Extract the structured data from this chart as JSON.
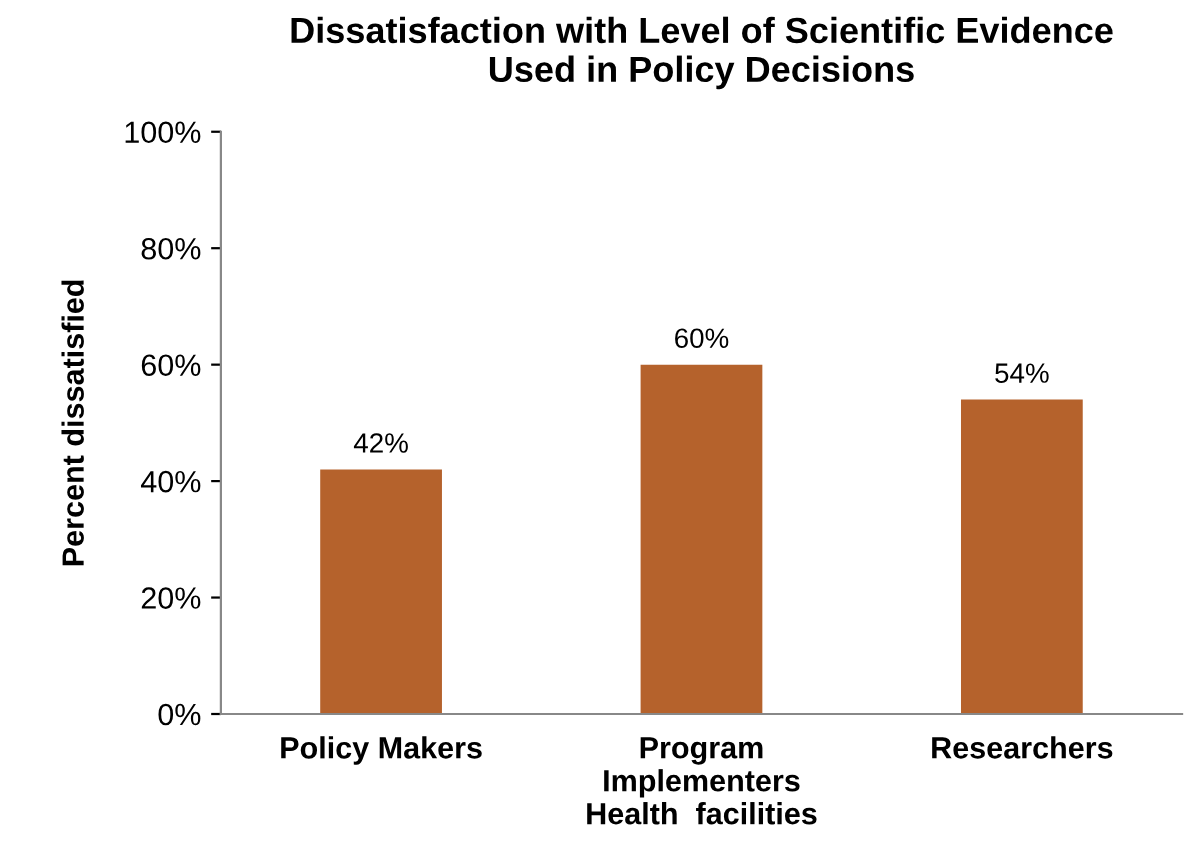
{
  "chart_data": {
    "type": "bar",
    "title": "Dissatisfaction with Level of Scientific Evidence\nUsed in Policy Decisions",
    "ylabel": "Percent dissatisfied",
    "categories": [
      "Policy Makers",
      "Program\nImplementers\nHealth  facilities",
      "Researchers"
    ],
    "values": [
      42,
      60,
      54
    ],
    "color": "#b5622c",
    "value_labels": [
      "42%",
      "60%",
      "54%"
    ],
    "ylim": [
      0,
      100
    ],
    "yticks": [
      {
        "value": 0,
        "label": "0%"
      },
      {
        "value": 20,
        "label": "20%"
      },
      {
        "value": 40,
        "label": "40%"
      },
      {
        "value": 60,
        "label": "60%"
      },
      {
        "value": 80,
        "label": "80%"
      },
      {
        "value": 100,
        "label": "100%"
      }
    ],
    "grid": false,
    "legend": false
  }
}
